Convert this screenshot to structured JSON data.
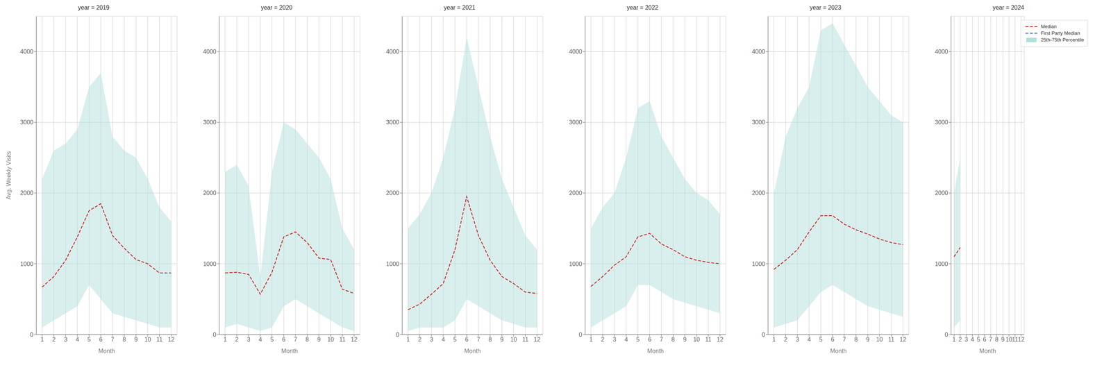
{
  "chart_data": [
    {
      "type": "line",
      "title": "year = 2019",
      "xlabel": "Month",
      "ylabel": "Avg. Weekly Visits",
      "x": [
        1,
        2,
        3,
        4,
        5,
        6,
        7,
        8,
        9,
        10,
        11,
        12
      ],
      "xlim": [
        0.5,
        12.5
      ],
      "xticks": [
        1,
        2,
        3,
        4,
        5,
        6,
        7,
        8,
        9,
        10,
        11,
        12
      ],
      "ylim": [
        0,
        4500
      ],
      "yticks": [
        0,
        1000,
        2000,
        3000,
        4000
      ],
      "grid": true,
      "series": [
        {
          "type": "line",
          "color": "#cc2222",
          "line_style": "dashed",
          "values": [
            670,
            820,
            1050,
            1380,
            1750,
            1850,
            1400,
            1220,
            1060,
            1000,
            870,
            870
          ]
        },
        {
          "type": "area",
          "color": "#b2dfdb",
          "lower": [
            100,
            200,
            300,
            400,
            700,
            500,
            300,
            250,
            200,
            150,
            100,
            100
          ],
          "upper": [
            2200,
            2600,
            2700,
            2900,
            3500,
            3700,
            2800,
            2600,
            2500,
            2200,
            1800,
            1600
          ]
        }
      ]
    },
    {
      "type": "line",
      "title": "year = 2020",
      "xlabel": "Month",
      "x": [
        1,
        2,
        3,
        4,
        5,
        6,
        7,
        8,
        9,
        10,
        11,
        12
      ],
      "xlim": [
        0.5,
        12.5
      ],
      "xticks": [
        1,
        2,
        3,
        4,
        5,
        6,
        7,
        8,
        9,
        10,
        11,
        12
      ],
      "ylim": [
        0,
        4500
      ],
      "yticks": [
        0,
        1000,
        2000,
        3000,
        4000
      ],
      "grid": true,
      "series": [
        {
          "type": "line",
          "color": "#cc2222",
          "line_style": "dashed",
          "values": [
            870,
            880,
            850,
            570,
            880,
            1380,
            1450,
            1300,
            1080,
            1060,
            640,
            580
          ]
        },
        {
          "type": "area",
          "color": "#b2dfdb",
          "lower": [
            100,
            150,
            100,
            50,
            100,
            400,
            500,
            400,
            300,
            200,
            100,
            50
          ],
          "upper": [
            2300,
            2400,
            2100,
            800,
            2300,
            3000,
            2900,
            2700,
            2500,
            2200,
            1500,
            1200
          ]
        }
      ]
    },
    {
      "type": "line",
      "title": "year = 2021",
      "xlabel": "Month",
      "x": [
        1,
        2,
        3,
        4,
        5,
        6,
        7,
        8,
        9,
        10,
        11,
        12
      ],
      "xlim": [
        0.5,
        12.5
      ],
      "xticks": [
        1,
        2,
        3,
        4,
        5,
        6,
        7,
        8,
        9,
        10,
        11,
        12
      ],
      "ylim": [
        0,
        4500
      ],
      "yticks": [
        0,
        1000,
        2000,
        3000,
        4000
      ],
      "grid": true,
      "series": [
        {
          "type": "line",
          "color": "#cc2222",
          "line_style": "dashed",
          "values": [
            350,
            430,
            570,
            720,
            1200,
            1950,
            1400,
            1050,
            820,
            720,
            600,
            580
          ]
        },
        {
          "type": "area",
          "color": "#b2dfdb",
          "lower": [
            50,
            100,
            100,
            100,
            200,
            500,
            400,
            300,
            200,
            150,
            100,
            100
          ],
          "upper": [
            1500,
            1700,
            2000,
            2500,
            3200,
            4200,
            3500,
            2800,
            2200,
            1800,
            1400,
            1200
          ]
        }
      ]
    },
    {
      "type": "line",
      "title": "year = 2022",
      "xlabel": "Month",
      "x": [
        1,
        2,
        3,
        4,
        5,
        6,
        7,
        8,
        9,
        10,
        11,
        12
      ],
      "xlim": [
        0.5,
        12.5
      ],
      "xticks": [
        1,
        2,
        3,
        4,
        5,
        6,
        7,
        8,
        9,
        10,
        11,
        12
      ],
      "ylim": [
        0,
        4500
      ],
      "yticks": [
        0,
        1000,
        2000,
        3000,
        4000
      ],
      "grid": true,
      "series": [
        {
          "type": "line",
          "color": "#cc2222",
          "line_style": "dashed",
          "values": [
            680,
            820,
            980,
            1100,
            1380,
            1430,
            1280,
            1200,
            1100,
            1050,
            1020,
            1000
          ]
        },
        {
          "type": "area",
          "color": "#b2dfdb",
          "lower": [
            100,
            200,
            300,
            400,
            700,
            700,
            600,
            500,
            450,
            400,
            350,
            300
          ],
          "upper": [
            1500,
            1800,
            2000,
            2500,
            3200,
            3300,
            2800,
            2500,
            2200,
            2000,
            1900,
            1700
          ]
        }
      ]
    },
    {
      "type": "line",
      "title": "year = 2023",
      "xlabel": "Month",
      "x": [
        1,
        2,
        3,
        4,
        5,
        6,
        7,
        8,
        9,
        10,
        11,
        12
      ],
      "xlim": [
        0.5,
        12.5
      ],
      "xticks": [
        1,
        2,
        3,
        4,
        5,
        6,
        7,
        8,
        9,
        10,
        11,
        12
      ],
      "ylim": [
        0,
        4500
      ],
      "yticks": [
        0,
        1000,
        2000,
        3000,
        4000
      ],
      "grid": true,
      "series": [
        {
          "type": "line",
          "color": "#cc2222",
          "line_style": "dashed",
          "values": [
            920,
            1050,
            1200,
            1450,
            1680,
            1680,
            1560,
            1480,
            1420,
            1350,
            1300,
            1270
          ]
        },
        {
          "type": "area",
          "color": "#b2dfdb",
          "lower": [
            100,
            150,
            200,
            400,
            600,
            700,
            600,
            500,
            400,
            350,
            300,
            250
          ],
          "upper": [
            2000,
            2800,
            3200,
            3500,
            4300,
            4400,
            4100,
            3800,
            3500,
            3300,
            3100,
            3000
          ]
        }
      ]
    },
    {
      "type": "line",
      "title": "year = 2024",
      "xlabel": "Month",
      "x": [
        1,
        2,
        3,
        4,
        5,
        6,
        7,
        8,
        9,
        10,
        11,
        12
      ],
      "xlim": [
        0.5,
        12.5
      ],
      "xticks": [
        1,
        2,
        3,
        4,
        5,
        6,
        7,
        8,
        9,
        10,
        11,
        12
      ],
      "ylim": [
        0,
        4500
      ],
      "yticks": [
        0,
        1000,
        2000,
        3000,
        4000
      ],
      "grid": true,
      "legend": "upper right",
      "series": [
        {
          "name": "Median",
          "type": "line",
          "color": "#cc2222",
          "line_style": "dashed",
          "values": [
            1100,
            1230,
            null,
            null,
            null,
            null,
            null,
            null,
            null,
            null,
            null,
            null
          ]
        },
        {
          "name": "First Party Median",
          "type": "line",
          "color": "#3366cc",
          "line_style": "dashed",
          "values": [
            null,
            null,
            null,
            null,
            null,
            null,
            null,
            null,
            null,
            null,
            null,
            null
          ]
        },
        {
          "name": "25th-75th Percentile",
          "type": "area",
          "color": "#b2dfdb",
          "lower": [
            100,
            200,
            null,
            null,
            null,
            null,
            null,
            null,
            null,
            null,
            null,
            null
          ],
          "upper": [
            2000,
            2500,
            null,
            null,
            null,
            null,
            null,
            null,
            null,
            null,
            null,
            null
          ]
        }
      ]
    }
  ]
}
